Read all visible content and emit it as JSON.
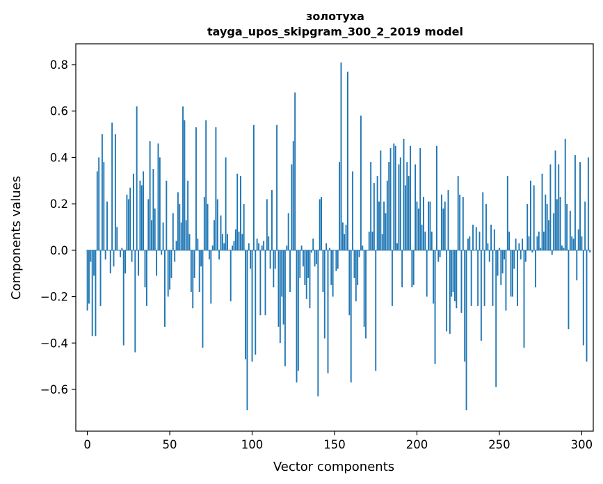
{
  "chart_data": {
    "type": "bar",
    "title": "золотуха",
    "subtitle": "tayga_upos_skipgram_300_2_2019 model",
    "xlabel": "Vector components",
    "ylabel": "Components values",
    "xlim": [
      -7,
      307
    ],
    "ylim": [
      -0.78,
      0.89
    ],
    "xticks": [
      0,
      50,
      100,
      150,
      200,
      250,
      300
    ],
    "yticks": [
      -0.6,
      -0.4,
      -0.2,
      0.0,
      0.2,
      0.4,
      0.6,
      0.8
    ],
    "xtick_labels": [
      "0",
      "50",
      "100",
      "150",
      "200",
      "250",
      "300"
    ],
    "ytick_labels": [
      "−0.6",
      "−0.4",
      "−0.2",
      "0.0",
      "0.2",
      "0.4",
      "0.6",
      "0.8"
    ],
    "bar_color": "#1f77b4",
    "grid": false,
    "legend": "none",
    "values": [
      -0.26,
      -0.23,
      -0.05,
      -0.37,
      -0.11,
      -0.37,
      0.34,
      0.4,
      -0.24,
      0.5,
      0.38,
      -0.04,
      0.21,
      0.0,
      -0.1,
      0.55,
      -0.07,
      0.5,
      0.1,
      0.0,
      -0.03,
      0.01,
      -0.41,
      -0.1,
      0.24,
      0.22,
      0.27,
      -0.05,
      0.33,
      -0.44,
      0.62,
      -0.11,
      0.3,
      0.28,
      0.34,
      -0.16,
      -0.24,
      0.22,
      0.47,
      0.13,
      0.35,
      0.18,
      -0.11,
      0.46,
      0.4,
      -0.02,
      0.12,
      -0.33,
      0.3,
      -0.2,
      -0.17,
      -0.12,
      0.16,
      -0.05,
      0.04,
      0.25,
      0.2,
      0.12,
      0.62,
      0.56,
      0.13,
      0.3,
      0.07,
      -0.18,
      -0.25,
      -0.12,
      0.53,
      0.05,
      -0.18,
      -0.07,
      -0.42,
      0.23,
      0.56,
      0.2,
      -0.04,
      -0.23,
      0.02,
      0.13,
      0.53,
      0.22,
      -0.04,
      0.15,
      0.07,
      0.03,
      0.4,
      0.07,
      0.0,
      -0.22,
      0.02,
      0.04,
      0.09,
      0.33,
      0.08,
      0.32,
      0.07,
      0.2,
      -0.47,
      -0.69,
      0.03,
      -0.08,
      -0.48,
      0.54,
      -0.45,
      0.05,
      0.03,
      -0.28,
      0.02,
      0.04,
      -0.28,
      0.22,
      0.06,
      -0.08,
      0.26,
      -0.16,
      -0.08,
      0.54,
      -0.33,
      -0.4,
      -0.2,
      -0.32,
      -0.5,
      0.02,
      0.16,
      -0.18,
      0.37,
      0.47,
      0.68,
      -0.57,
      -0.52,
      -0.12,
      0.02,
      -0.07,
      -0.15,
      -0.21,
      -0.12,
      -0.25,
      -0.01,
      0.05,
      -0.07,
      -0.06,
      -0.63,
      0.22,
      0.23,
      -0.18,
      -0.38,
      0.03,
      -0.53,
      0.01,
      -0.15,
      -0.2,
      0.0,
      -0.09,
      -0.08,
      0.38,
      0.81,
      0.12,
      0.07,
      0.11,
      0.77,
      -0.28,
      -0.57,
      0.34,
      -0.12,
      -0.22,
      -0.15,
      -0.03,
      0.58,
      0.02,
      -0.33,
      -0.38,
      0.0,
      0.08,
      0.38,
      0.08,
      0.29,
      -0.52,
      0.32,
      0.21,
      0.43,
      0.07,
      0.21,
      0.16,
      0.3,
      0.38,
      0.44,
      -0.24,
      0.46,
      0.45,
      0.03,
      0.37,
      0.4,
      -0.16,
      0.48,
      0.28,
      0.38,
      0.32,
      0.45,
      -0.16,
      -0.15,
      0.37,
      0.21,
      0.18,
      0.44,
      0.11,
      0.23,
      0.08,
      -0.2,
      0.21,
      0.21,
      0.08,
      -0.23,
      -0.49,
      0.45,
      -0.05,
      -0.03,
      0.24,
      0.18,
      0.21,
      -0.35,
      0.26,
      -0.36,
      -0.2,
      -0.18,
      -0.22,
      -0.25,
      0.32,
      0.24,
      -0.27,
      0.23,
      -0.48,
      -0.69,
      0.05,
      0.06,
      -0.24,
      0.11,
      0.0,
      0.1,
      -0.24,
      0.08,
      -0.39,
      0.25,
      -0.24,
      0.2,
      0.03,
      -0.05,
      0.11,
      -0.24,
      0.09,
      -0.59,
      -0.11,
      0.01,
      -0.15,
      -0.1,
      -0.04,
      -0.26,
      0.32,
      0.08,
      -0.2,
      -0.2,
      -0.08,
      0.05,
      -0.24,
      0.03,
      -0.04,
      0.05,
      -0.42,
      -0.05,
      0.2,
      0.06,
      0.3,
      -0.01,
      0.28,
      -0.16,
      0.06,
      0.08,
      0.01,
      0.33,
      0.08,
      0.24,
      0.2,
      0.13,
      0.37,
      -0.02,
      0.16,
      0.43,
      0.22,
      0.37,
      0.23,
      0.02,
      0.01,
      0.48,
      0.2,
      -0.34,
      0.17,
      0.06,
      0.05,
      0.41,
      -0.13,
      0.09,
      0.38,
      0.06,
      -0.41,
      0.21,
      -0.48,
      0.4,
      -0.01
    ]
  }
}
